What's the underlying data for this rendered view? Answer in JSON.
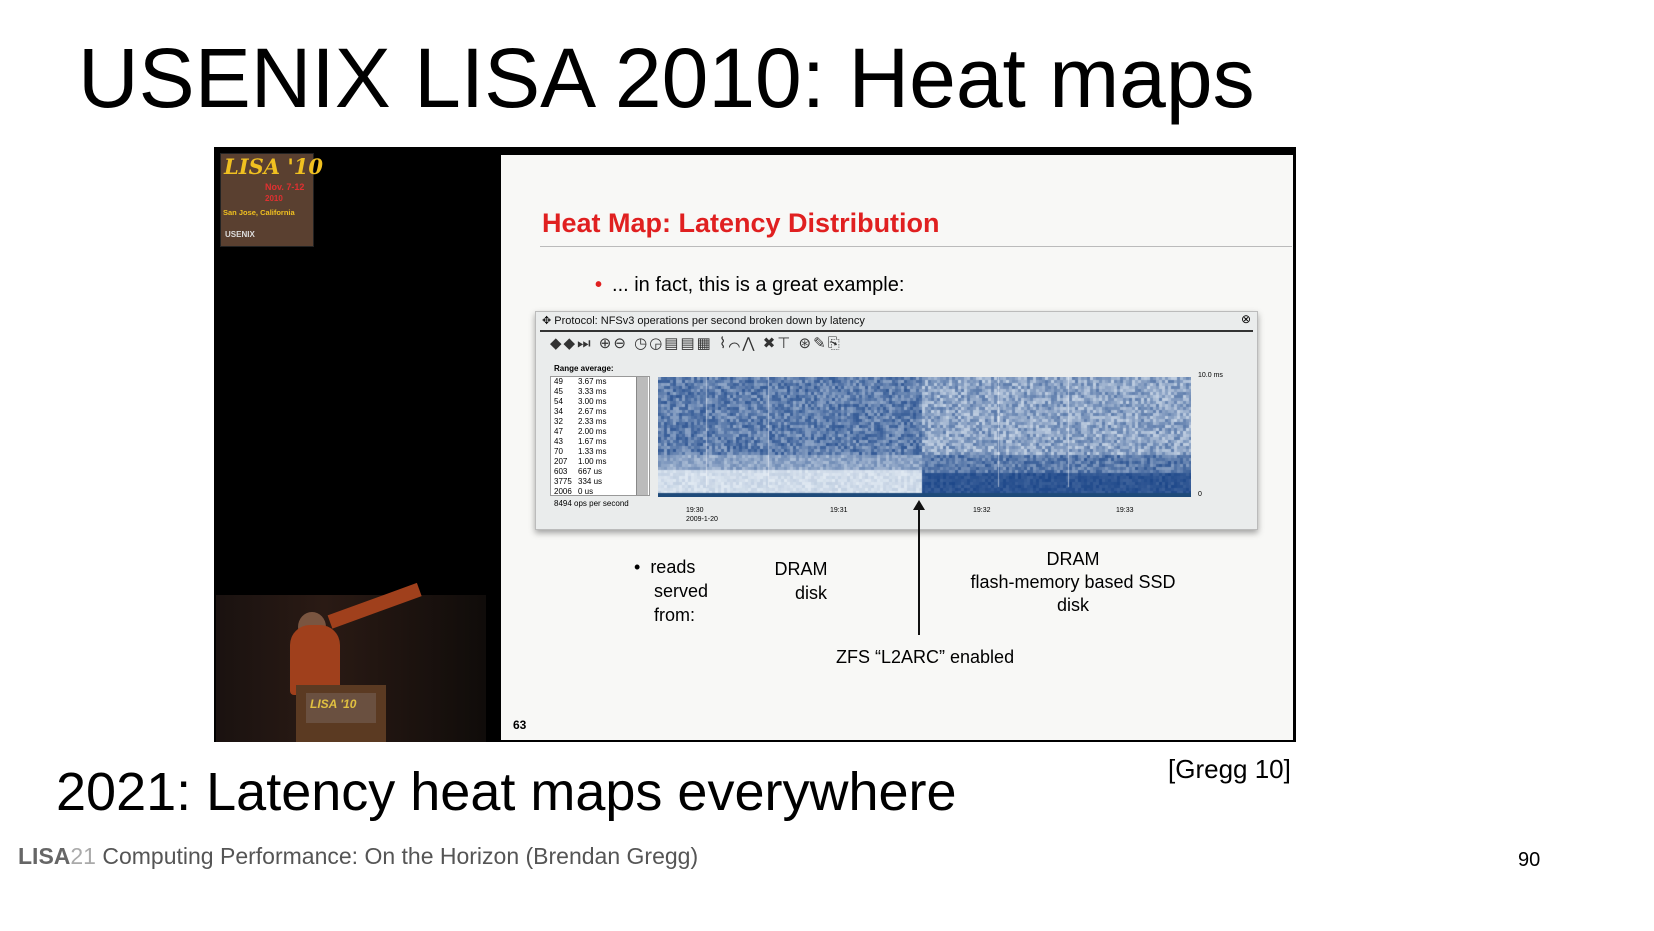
{
  "title": "USENIX LISA 2010: Heat maps",
  "logo": {
    "line1": "LISA '10",
    "line2": "Nov. 7-12",
    "line3": "2010",
    "line4": "San Jose, California",
    "line5": "USENIX"
  },
  "podium_text": "LISA '10",
  "slide": {
    "title": "Heat Map: Latency Distribution",
    "bullet": "... in fact, this is a great example:",
    "window": {
      "title": "Protocol: NFSv3 operations per second broken down by latency",
      "toolbar_icons": [
        "arrow-left-icon",
        "arrow-right-icon",
        "skip-end-icon",
        "zoom-in-icon",
        "zoom-out-icon",
        "clock-icon",
        "clock-back-icon",
        "table-icon",
        "table-icon",
        "table-icon",
        "chart-icon",
        "chart-icon",
        "chart-icon",
        "expand-icon",
        "pin-icon",
        "globe-icon",
        "edit-icon",
        "export-icon"
      ],
      "range_label": "Range average:",
      "range_rows": [
        [
          "49",
          "3.67 ms"
        ],
        [
          "45",
          "3.33 ms"
        ],
        [
          "54",
          "3.00 ms"
        ],
        [
          "34",
          "2.67 ms"
        ],
        [
          "32",
          "2.33 ms"
        ],
        [
          "47",
          "2.00 ms"
        ],
        [
          "43",
          "1.67 ms"
        ],
        [
          "70",
          "1.33 ms"
        ],
        [
          "207",
          "1.00 ms"
        ],
        [
          "603",
          "667 us"
        ],
        [
          "3775",
          "334 us"
        ],
        [
          "2006",
          "0 us"
        ]
      ],
      "ops": "8494 ops per second",
      "y_top": "10.0 ms",
      "y_bottom": "0",
      "x_ticks": [
        "19:30",
        "19:31",
        "19:32",
        "19:33"
      ],
      "x_date": "2009-1-20",
      "colors": {
        "dark": "#1e4a7a",
        "mid": "#5a86b4",
        "light": "#c8d8e8"
      }
    },
    "reads_bullet": [
      "reads",
      "served",
      "from:"
    ],
    "left_label": [
      "DRAM",
      "disk"
    ],
    "right_label": [
      "DRAM",
      "flash-memory based SSD",
      "disk"
    ],
    "arrow_label": "ZFS “L2ARC” enabled",
    "number": "63"
  },
  "subtitle": "2021: Latency heat maps everywhere",
  "citation": "[Gregg 10]",
  "footer": {
    "lisa": "LISA",
    "year": "21",
    "text": "Computing Performance: On the Horizon (Brendan Gregg)"
  },
  "page_number": "90"
}
